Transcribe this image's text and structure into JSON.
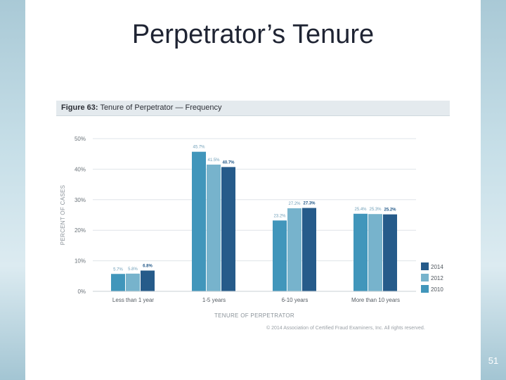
{
  "slide": {
    "title": "Perpetrator’s Tenure",
    "page_number": "51"
  },
  "figure": {
    "label": "Figure 63:",
    "caption": "Tenure of Perpetrator — Frequency",
    "copyright": "© 2014 Association of Certified Fraud Examiners, Inc. All rights reserved."
  },
  "colors": {
    "2010": "#4196bb",
    "2012": "#77b3cc",
    "2014": "#265b8a",
    "bands": "#b5d3df"
  },
  "chart_data": {
    "type": "bar",
    "xlabel": "TENURE OF PERPETRATOR",
    "ylabel": "PERCENT OF CASES",
    "ylim": [
      0,
      50
    ],
    "yticks": [
      "0%",
      "10%",
      "20%",
      "30%",
      "40%",
      "50%"
    ],
    "grid": true,
    "legend_position": "right",
    "categories": [
      "Less than 1 year",
      "1-5 years",
      "6-10 years",
      "More than 10 years"
    ],
    "series": [
      {
        "name": "2010",
        "values": [
          5.7,
          45.7,
          23.2,
          25.4
        ],
        "labels": [
          "5.7%",
          "45.7%",
          "23.2%",
          "25.4%"
        ]
      },
      {
        "name": "2012",
        "values": [
          5.8,
          41.5,
          27.2,
          25.3
        ],
        "labels": [
          "5.8%",
          "41.5%",
          "27.2%",
          "25.3%"
        ]
      },
      {
        "name": "2014",
        "values": [
          6.8,
          40.7,
          27.3,
          25.2
        ],
        "labels": [
          "6.8%",
          "40.7%",
          "27.3%",
          "25.2%"
        ]
      }
    ],
    "legend_order": [
      "2014",
      "2012",
      "2010"
    ]
  }
}
